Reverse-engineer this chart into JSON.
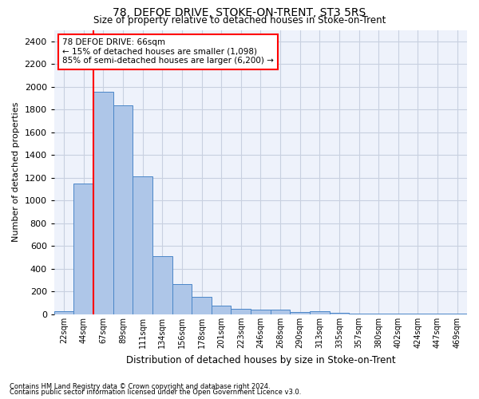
{
  "title1": "78, DEFOE DRIVE, STOKE-ON-TRENT, ST3 5RS",
  "title2": "Size of property relative to detached houses in Stoke-on-Trent",
  "xlabel": "Distribution of detached houses by size in Stoke-on-Trent",
  "ylabel": "Number of detached properties",
  "categories": [
    "22sqm",
    "44sqm",
    "67sqm",
    "89sqm",
    "111sqm",
    "134sqm",
    "156sqm",
    "178sqm",
    "201sqm",
    "223sqm",
    "246sqm",
    "268sqm",
    "290sqm",
    "313sqm",
    "335sqm",
    "357sqm",
    "380sqm",
    "402sqm",
    "424sqm",
    "447sqm",
    "469sqm"
  ],
  "values": [
    30,
    1150,
    1960,
    1840,
    1215,
    515,
    265,
    155,
    80,
    50,
    45,
    40,
    20,
    25,
    15,
    10,
    5,
    5,
    5,
    5,
    10
  ],
  "bar_color": "#aec6e8",
  "bar_edge_color": "#4a86c8",
  "vline_x": 1.5,
  "vline_color": "red",
  "annotation_text": "78 DEFOE DRIVE: 66sqm\n← 15% of detached houses are smaller (1,098)\n85% of semi-detached houses are larger (6,200) →",
  "annotation_box_color": "white",
  "annotation_box_edge_color": "red",
  "ylim": [
    0,
    2500
  ],
  "yticks": [
    0,
    200,
    400,
    600,
    800,
    1000,
    1200,
    1400,
    1600,
    1800,
    2000,
    2200,
    2400
  ],
  "footnote1": "Contains HM Land Registry data © Crown copyright and database right 2024.",
  "footnote2": "Contains public sector information licensed under the Open Government Licence v3.0.",
  "background_color": "#eef2fb",
  "grid_color": "#c8d0e0"
}
